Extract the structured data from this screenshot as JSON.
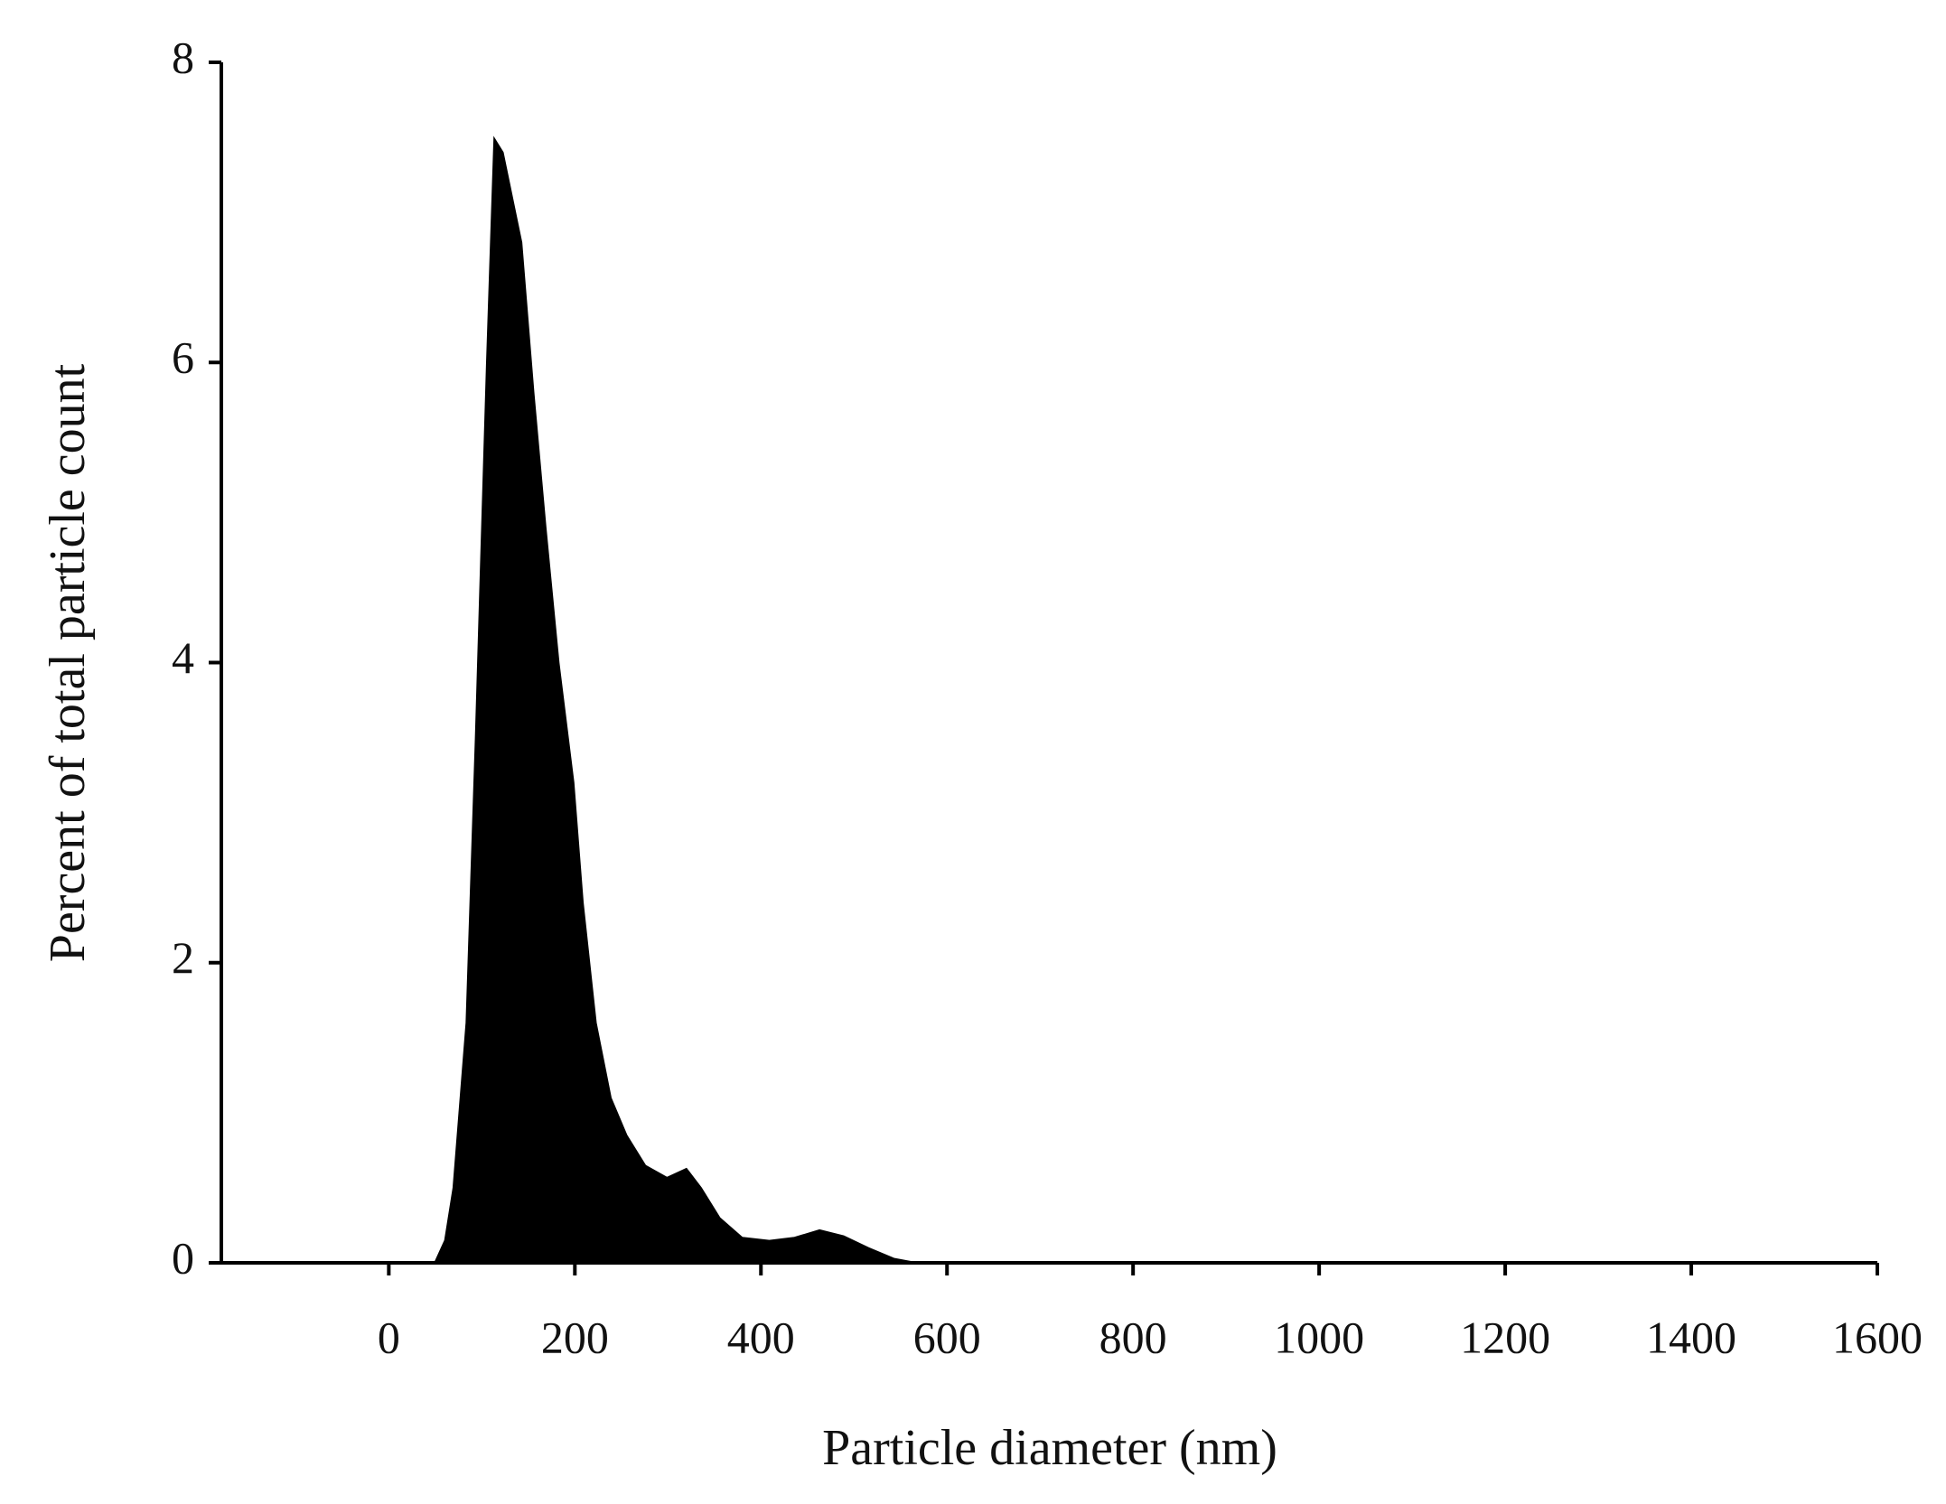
{
  "chart_data": {
    "type": "area",
    "xlabel": "Particle diameter (nm)",
    "ylabel": "Percent of total particle count",
    "x": [
      0,
      49,
      60,
      69,
      83,
      93,
      105,
      113,
      123,
      143,
      156,
      169,
      183,
      199,
      209,
      223,
      239,
      256,
      276,
      299,
      320,
      336,
      356,
      380,
      409,
      436,
      463,
      489,
      516,
      543,
      569,
      1600
    ],
    "values": [
      0,
      0,
      0.15,
      0.5,
      1.6,
      3.5,
      6.0,
      7.5,
      7.4,
      6.8,
      5.8,
      4.9,
      4.0,
      3.2,
      2.4,
      1.6,
      1.1,
      0.85,
      0.65,
      0.57,
      0.63,
      0.5,
      0.3,
      0.17,
      0.15,
      0.17,
      0.22,
      0.18,
      0.1,
      0.03,
      0,
      0
    ],
    "color": "#000000",
    "xlim": [
      -180,
      1600
    ],
    "xticks": [
      0,
      200,
      400,
      600,
      800,
      1000,
      1200,
      1400,
      1600
    ],
    "ylim": [
      0,
      8
    ],
    "yticks": [
      0,
      2,
      4,
      6,
      8
    ]
  }
}
